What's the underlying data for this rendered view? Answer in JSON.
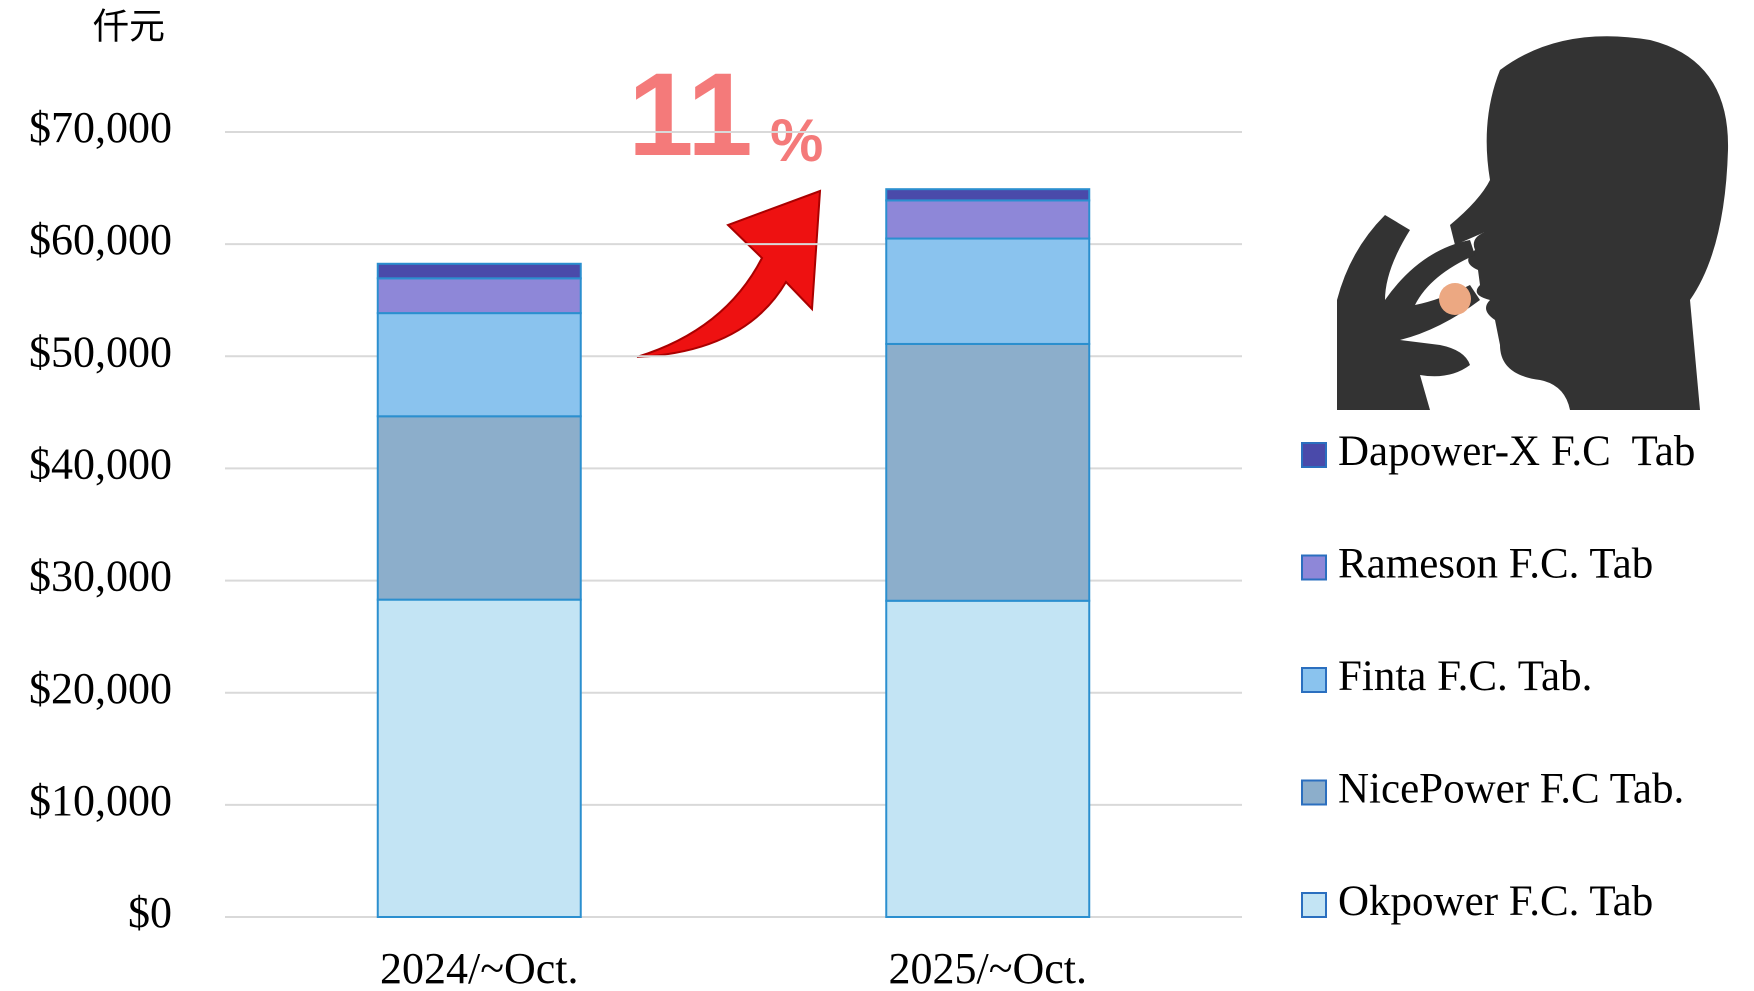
{
  "chart_data": {
    "type": "stacked_bar",
    "unit_label": "仟元",
    "annotation": {
      "text": "11",
      "suffix": "%"
    },
    "categories": [
      "2024/~Oct.",
      "2025/~Oct."
    ],
    "series": [
      {
        "name": "Okpower F.C. Tab",
        "color": "#c3e4f4",
        "values": [
          28300,
          28200
        ]
      },
      {
        "name": "NicePower F.C Tab.",
        "color": "#8caecb",
        "values": [
          16350,
          22900
        ]
      },
      {
        "name": "Finta F.C. Tab.",
        "color": "#8ac3ee",
        "values": [
          9200,
          9400
        ]
      },
      {
        "name": "Rameson F.C. Tab",
        "color": "#8e87d8",
        "values": [
          3100,
          3400
        ]
      },
      {
        "name": "Dapower-X F.C  Tab",
        "color": "#4a4aaa",
        "values": [
          1300,
          1000
        ]
      }
    ],
    "ylim": [
      0,
      70000
    ],
    "yticks": [
      {
        "value": 0,
        "label": "$0"
      },
      {
        "value": 10000,
        "label": "$10,000"
      },
      {
        "value": 20000,
        "label": "$20,000"
      },
      {
        "value": 30000,
        "label": "$30,000"
      },
      {
        "value": 40000,
        "label": "$40,000"
      },
      {
        "value": 50000,
        "label": "$50,000"
      },
      {
        "value": 60000,
        "label": "$60,000"
      },
      {
        "value": 70000,
        "label": "$70,000"
      }
    ],
    "grid": true,
    "legend": "right"
  }
}
